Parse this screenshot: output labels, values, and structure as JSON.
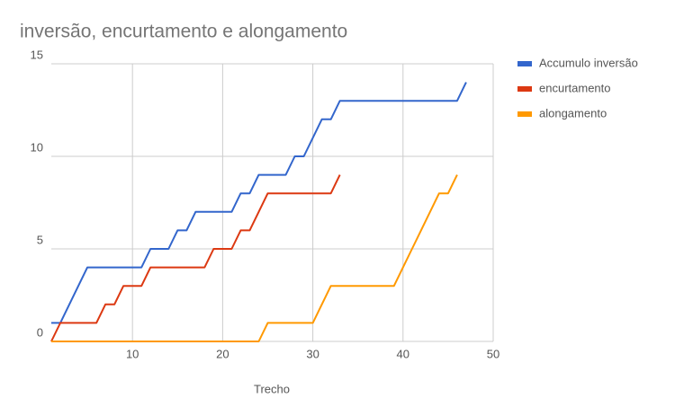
{
  "chart_data": {
    "type": "line",
    "title": "inversão, encurtamento e alongamento",
    "x_label": "Trecho",
    "x": [
      1,
      2,
      3,
      4,
      5,
      6,
      7,
      8,
      9,
      10,
      11,
      12,
      13,
      14,
      15,
      16,
      17,
      18,
      19,
      20,
      21,
      22,
      23,
      24,
      25,
      26,
      27,
      28,
      29,
      30,
      31,
      32,
      33,
      34,
      35,
      36,
      37,
      38,
      39,
      40,
      41,
      42,
      43,
      44,
      45,
      46,
      47
    ],
    "series": [
      {
        "name": "Accumulo inversão",
        "color": "#3366cc",
        "values": [
          1,
          1,
          2,
          3,
          4,
          4,
          4,
          4,
          4,
          4,
          4,
          5,
          5,
          5,
          6,
          6,
          7,
          7,
          7,
          7,
          7,
          8,
          8,
          9,
          9,
          9,
          9,
          10,
          10,
          11,
          12,
          12,
          13,
          13,
          13,
          13,
          13,
          13,
          13,
          13,
          13,
          13,
          13,
          13,
          13,
          13,
          14
        ]
      },
      {
        "name": "encurtamento",
        "color": "#dc3912",
        "values": [
          0,
          1,
          1,
          1,
          1,
          1,
          2,
          2,
          3,
          3,
          3,
          4,
          4,
          4,
          4,
          4,
          4,
          4,
          5,
          5,
          5,
          6,
          6,
          7,
          8,
          8,
          8,
          8,
          8,
          8,
          8,
          8,
          9,
          null,
          null,
          null,
          null,
          null,
          null,
          null,
          null,
          null,
          null,
          null,
          null,
          null,
          null
        ]
      },
      {
        "name": "alongamento",
        "color": "#ff9900",
        "values": [
          0,
          0,
          0,
          0,
          0,
          0,
          0,
          0,
          0,
          0,
          0,
          0,
          0,
          0,
          0,
          0,
          0,
          0,
          0,
          0,
          0,
          0,
          0,
          0,
          1,
          1,
          1,
          1,
          1,
          1,
          2,
          3,
          3,
          3,
          3,
          3,
          3,
          3,
          3,
          4,
          5,
          6,
          7,
          8,
          8,
          9,
          null
        ]
      }
    ],
    "xlim": [
      1,
      50
    ],
    "xticks": [
      10,
      20,
      30,
      40,
      50
    ],
    "ylim": [
      0,
      15
    ],
    "yticks": [
      0,
      5,
      10,
      15
    ],
    "grid": true,
    "legend": "right"
  }
}
